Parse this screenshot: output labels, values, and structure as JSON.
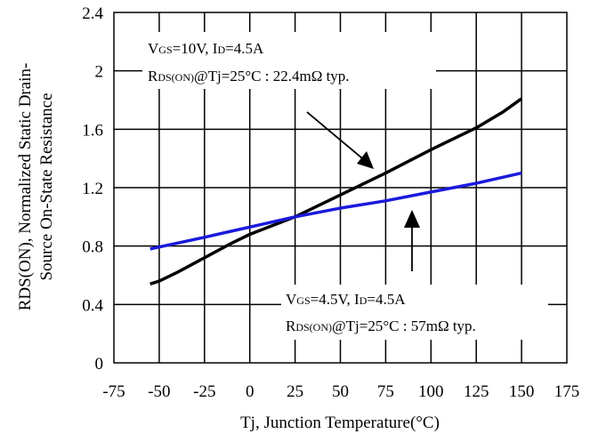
{
  "chart_data": {
    "type": "line",
    "title": "",
    "xlabel": "Tj, Junction Temperature(°C)",
    "ylabel_line1": "RDS(ON), Normalized Static Drain-",
    "ylabel_line2": "Source On-State Resistance",
    "xlim": [
      -75,
      175
    ],
    "ylim": [
      0,
      2.4
    ],
    "xticks": [
      -75,
      -50,
      -25,
      0,
      25,
      50,
      75,
      100,
      125,
      150,
      175
    ],
    "yticks": [
      0,
      0.4,
      0.8,
      1.2,
      1.6,
      2,
      2.4
    ],
    "ytick_labels": [
      "0",
      "0.4",
      "0.8",
      "1.2",
      "1.6",
      "2",
      "2.4"
    ],
    "grid": true,
    "series": [
      {
        "color": "#000000",
        "x": [
          -55,
          -50,
          -40,
          -25,
          -10,
          0,
          25,
          50,
          75,
          100,
          125,
          140,
          150
        ],
        "y": [
          0.54,
          0.56,
          0.62,
          0.72,
          0.82,
          0.88,
          1.0,
          1.15,
          1.3,
          1.46,
          1.61,
          1.72,
          1.81
        ]
      },
      {
        "color": "#1a1adc",
        "x": [
          -55,
          -25,
          0,
          25,
          50,
          75,
          100,
          125,
          150
        ],
        "y": [
          0.78,
          0.86,
          0.93,
          1.0,
          1.06,
          1.11,
          1.17,
          1.23,
          1.3
        ]
      }
    ],
    "annotations": [
      {
        "line1_pre": "V",
        "line1_sub1": "GS",
        "line1_mid": "=10V, I",
        "line1_sub2": "D",
        "line1_post": "=4.5A",
        "line2_pre": "R",
        "line2_sub": "DS(ON)",
        "line2_post": "@Tj=25°C : 22.4mΩ typ."
      },
      {
        "line1_pre": "V",
        "line1_sub1": "GS",
        "line1_mid": "=4.5V, I",
        "line1_sub2": "D",
        "line1_post": "=4.5A",
        "line2_pre": "R",
        "line2_sub": "DS(ON)",
        "line2_post": "@Tj=25°C : 57mΩ typ."
      }
    ]
  }
}
